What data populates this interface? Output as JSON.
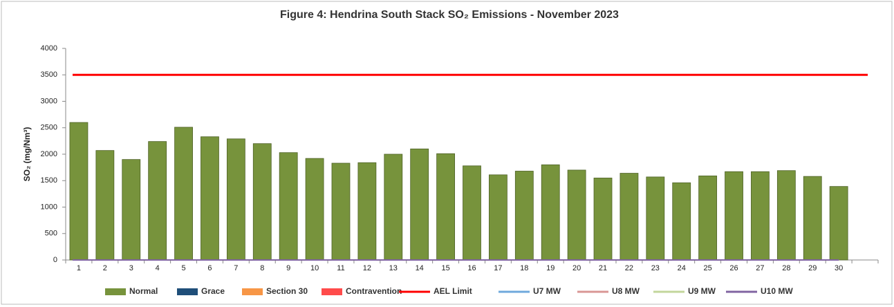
{
  "chart_data": {
    "type": "bar",
    "title": "Figure 4: Hendrina South Stack SO₂ Emissions -  November 2023",
    "y_label": "SO₂  (mg/Nm³)",
    "categories": [
      "1",
      "2",
      "3",
      "4",
      "5",
      "6",
      "7",
      "8",
      "9",
      "10",
      "11",
      "12",
      "13",
      "14",
      "15",
      "16",
      "17",
      "18",
      "19",
      "20",
      "21",
      "22",
      "23",
      "24",
      "25",
      "26",
      "27",
      "28",
      "29",
      "30",
      null
    ],
    "series": [
      {
        "name": "Normal",
        "kind": "bar",
        "color": "#77933c",
        "values": [
          2600,
          2070,
          1900,
          2240,
          2510,
          2330,
          2290,
          2200,
          2030,
          1920,
          1830,
          1840,
          2000,
          2100,
          2010,
          1780,
          1610,
          1680,
          1800,
          1700,
          1550,
          1640,
          1570,
          1460,
          1590,
          1670,
          1670,
          1690,
          1580,
          1390,
          null
        ]
      },
      {
        "name": "Grace",
        "kind": "bar",
        "color": "#1f4e79",
        "values": [
          0,
          0,
          0,
          0,
          0,
          0,
          0,
          0,
          0,
          0,
          0,
          0,
          0,
          0,
          0,
          0,
          0,
          0,
          0,
          0,
          0,
          0,
          0,
          0,
          0,
          0,
          0,
          0,
          0,
          0,
          null
        ]
      },
      {
        "name": "Section 30",
        "kind": "bar",
        "color": "#f79646",
        "values": [
          0,
          0,
          0,
          0,
          0,
          0,
          0,
          0,
          0,
          0,
          0,
          0,
          0,
          0,
          0,
          0,
          0,
          0,
          0,
          0,
          0,
          0,
          0,
          0,
          0,
          0,
          0,
          0,
          0,
          0,
          null
        ]
      },
      {
        "name": "Contravention",
        "kind": "bar",
        "color": "#ff4b4b",
        "values": [
          0,
          0,
          0,
          0,
          0,
          0,
          0,
          0,
          0,
          0,
          0,
          0,
          0,
          0,
          0,
          0,
          0,
          0,
          0,
          0,
          0,
          0,
          0,
          0,
          0,
          0,
          0,
          0,
          0,
          0,
          null
        ]
      },
      {
        "name": "AEL Limit",
        "kind": "line",
        "color": "#ff0000",
        "values": [
          3500,
          3500,
          3500,
          3500,
          3500,
          3500,
          3500,
          3500,
          3500,
          3500,
          3500,
          3500,
          3500,
          3500,
          3500,
          3500,
          3500,
          3500,
          3500,
          3500,
          3500,
          3500,
          3500,
          3500,
          3500,
          3500,
          3500,
          3500,
          3500,
          3500,
          3500
        ]
      },
      {
        "name": "U7 MW",
        "kind": "line",
        "color": "#6fa8dc",
        "values": [
          0,
          0,
          0,
          0,
          0,
          0,
          0,
          0,
          0,
          0,
          0,
          0,
          0,
          0,
          0,
          0,
          0,
          0,
          0,
          0,
          0,
          0,
          0,
          0,
          0,
          0,
          0,
          0,
          0,
          0,
          null
        ]
      },
      {
        "name": "U8 MW",
        "kind": "line",
        "color": "#d99694",
        "values": [
          0,
          0,
          0,
          0,
          0,
          0,
          0,
          0,
          0,
          0,
          0,
          0,
          0,
          0,
          0,
          0,
          0,
          0,
          0,
          0,
          0,
          0,
          0,
          0,
          0,
          0,
          0,
          0,
          0,
          0,
          null
        ]
      },
      {
        "name": "U9 MW",
        "kind": "line",
        "color": "#c3d69b",
        "values": [
          0,
          0,
          0,
          0,
          0,
          0,
          0,
          0,
          0,
          0,
          0,
          0,
          0,
          0,
          0,
          0,
          0,
          0,
          0,
          0,
          0,
          0,
          0,
          0,
          0,
          0,
          0,
          0,
          0,
          0,
          null
        ]
      },
      {
        "name": "U10 MW",
        "kind": "line",
        "color": "#8064a2",
        "values": [
          0,
          0,
          0,
          0,
          0,
          0,
          0,
          0,
          0,
          0,
          0,
          0,
          0,
          0,
          0,
          0,
          0,
          0,
          0,
          0,
          0,
          0,
          0,
          0,
          0,
          0,
          0,
          0,
          0,
          0,
          null
        ]
      }
    ],
    "ylim": [
      0,
      4000
    ],
    "yticks": [
      0,
      500,
      1000,
      1500,
      2000,
      2500,
      3000,
      3500,
      4000
    ],
    "stacked": true,
    "grid": false,
    "legend": "bottom"
  }
}
